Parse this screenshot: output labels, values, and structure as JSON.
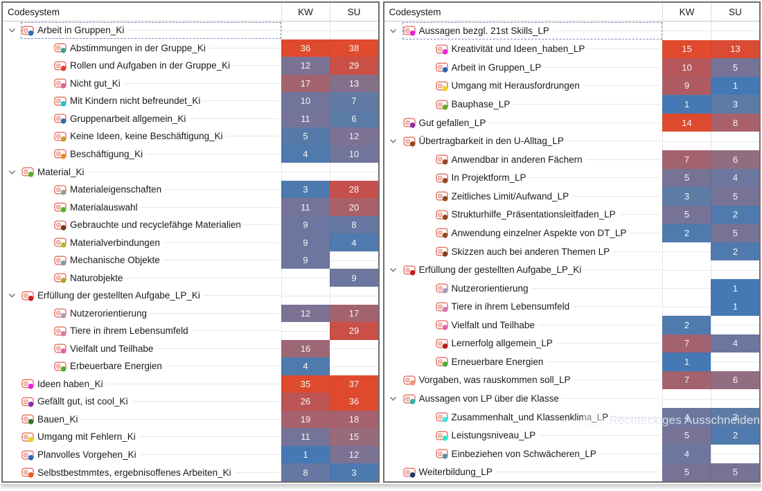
{
  "colors": {
    "tag_outline": "#e5796a",
    "leader_line": "#e6e6ea",
    "selection_dash": "#7089b4",
    "chevron": "#757575",
    "heat_stops": [
      [
        0.0,
        "#4579b3"
      ],
      [
        0.08,
        "#4f7aad"
      ],
      [
        0.15,
        "#5d7ba4"
      ],
      [
        0.22,
        "#6d769e"
      ],
      [
        0.29,
        "#787396"
      ],
      [
        0.36,
        "#936d81"
      ],
      [
        0.43,
        "#a2636f"
      ],
      [
        0.5,
        "#a8616b"
      ],
      [
        0.6,
        "#b15a5f"
      ],
      [
        0.7,
        "#bf5252"
      ],
      [
        0.8,
        "#d24c3c"
      ],
      [
        0.88,
        "#dd4a2f"
      ],
      [
        1.0,
        "#e04a2d"
      ]
    ]
  },
  "watermark": {
    "text": "Rechteckiges Ausschneiden"
  },
  "panels": [
    {
      "header": {
        "name": "Codesystem",
        "col1": "KW",
        "col2": "SU"
      },
      "max": 38,
      "rows": [
        {
          "label": "Arbeit in Gruppen_Ki",
          "level": 0,
          "parent": true,
          "selected": true,
          "dot": "#3468b8",
          "kw": null,
          "su": null
        },
        {
          "label": "Abstimmungen in der Gruppe_Ki",
          "level": 1,
          "dot": "#3fa389",
          "kw": 36,
          "su": 38
        },
        {
          "label": "Rollen und Aufgaben in der Gruppe_Ki",
          "level": 1,
          "dot": "#e23b28",
          "kw": 12,
          "su": 29
        },
        {
          "label": "Nicht gut_Ki",
          "level": 1,
          "dot": "#d1679e",
          "kw": 17,
          "su": 13
        },
        {
          "label": "Mit Kindern nicht befreundet_Ki",
          "level": 1,
          "dot": "#17c3da",
          "kw": 10,
          "su": 7
        },
        {
          "label": "Gruppenarbeit allgemein_Ki",
          "level": 1,
          "dot": "#2f6ab8",
          "kw": 11,
          "su": 6
        },
        {
          "label": "Keine Ideen, keine Beschäftigung_Ki",
          "level": 1,
          "dot": "#d29a36",
          "kw": 5,
          "su": 12
        },
        {
          "label": "Beschäftigung_Ki",
          "level": 1,
          "dot": "#f08a1d",
          "kw": 4,
          "su": 10
        },
        {
          "label": "Material_Ki",
          "level": 0,
          "parent": true,
          "dot": "#57aa2e",
          "kw": null,
          "su": null
        },
        {
          "label": "Materialeigenschaften",
          "level": 1,
          "dot": "#8da492",
          "kw": 3,
          "su": 28
        },
        {
          "label": "Materialauswahl",
          "level": 1,
          "dot": "#4fb81e",
          "kw": 11,
          "su": 20
        },
        {
          "label": "Gebrauchte und recyclefähge Materialien",
          "level": 1,
          "dot": "#77361b",
          "kw": 9,
          "su": 8
        },
        {
          "label": "Materialverbindungen",
          "level": 1,
          "dot": "#b3bb2e",
          "kw": 9,
          "su": 4
        },
        {
          "label": "Mechanische Objekte",
          "level": 1,
          "dot": "#7e9dac",
          "kw": 9,
          "su": null
        },
        {
          "label": "Naturobjekte",
          "level": 1,
          "dot": "#b3a226",
          "kw": null,
          "su": 9
        },
        {
          "label": "Erfüllung der gestellten Aufgabe_LP_Ki",
          "level": 0,
          "parent": true,
          "dot": "#d41f1f",
          "kw": null,
          "su": null
        },
        {
          "label": "Nutzerorientierung",
          "level": 1,
          "dot": "#a99cc0",
          "kw": 12,
          "su": 17
        },
        {
          "label": "Tiere in ihrem Lebensumfeld",
          "level": 1,
          "dot": "#d877ae",
          "kw": null,
          "su": 29
        },
        {
          "label": "Vielfalt und Teilhabe",
          "level": 1,
          "dot": "#e45fa9",
          "kw": 16,
          "su": null
        },
        {
          "label": "Erbeuerbare Energien",
          "level": 1,
          "dot": "#4caf2e",
          "kw": 4,
          "su": null
        },
        {
          "label": "Ideen haben_Ki",
          "level": 0,
          "dot": "#ef1fd9",
          "kw": 35,
          "su": 37
        },
        {
          "label": "Gefällt gut, ist cool_Ki",
          "level": 0,
          "dot": "#8f2bad",
          "kw": 26,
          "su": 36
        },
        {
          "label": "Bauen_Ki",
          "level": 0,
          "dot": "#2c7a1a",
          "kw": 19,
          "su": 18
        },
        {
          "label": "Umgang mit Fehlern_Ki",
          "level": 0,
          "dot": "#ecd21f",
          "kw": 11,
          "su": 15
        },
        {
          "label": "Planvolles Vorgehen_Ki",
          "level": 0,
          "dot": "#2a69b3",
          "kw": 1,
          "su": 12
        },
        {
          "label": "Selbstbestmmtes, ergebnisoffenes Arbeiten_Ki",
          "level": 0,
          "dot": "#f2591c",
          "kw": 8,
          "su": 3
        }
      ]
    },
    {
      "header": {
        "name": "Codesystem",
        "col1": "KW",
        "col2": "SU"
      },
      "max": 15,
      "rows": [
        {
          "label": "Aussagen bezgl. 21st Skills_LP",
          "level": 0,
          "parent": true,
          "selected": true,
          "dot": "#ef1fd9",
          "kw": null,
          "su": null
        },
        {
          "label": "Kreativität und Ideen_haben_LP",
          "level": 1,
          "dot": "#ef1fd9",
          "kw": 15,
          "su": 13
        },
        {
          "label": "Arbeit in Gruppen_LP",
          "level": 1,
          "dot": "#2a69b3",
          "kw": 10,
          "su": 5
        },
        {
          "label": "Umgang mit Herausfordrungen",
          "level": 1,
          "dot": "#ecd21f",
          "kw": 9,
          "su": 1
        },
        {
          "label": "Bauphase_LP",
          "level": 1,
          "dot": "#67a82a",
          "kw": 1,
          "su": 3
        },
        {
          "label": "Gut gefallen_LP",
          "level": 0,
          "dot": "#8f2bad",
          "kw": 14,
          "su": 8
        },
        {
          "label": "Übertragbarkeit in den U-Alltag_LP",
          "level": 0,
          "parent": true,
          "dot": "#92471f",
          "kw": null,
          "su": null
        },
        {
          "label": "Anwendbar in anderen Fächern",
          "level": 1,
          "dot": "#92471f",
          "kw": 7,
          "su": 6
        },
        {
          "label": "In Projektform_LP",
          "level": 1,
          "dot": "#92471f",
          "kw": 5,
          "su": 4
        },
        {
          "label": "Zeitliches Limit/Aufwand_LP",
          "level": 1,
          "dot": "#92471f",
          "kw": 3,
          "su": 5
        },
        {
          "label": "Strukturhilfe_Präsentationsleitfaden_LP",
          "level": 1,
          "dot": "#92471f",
          "kw": 5,
          "su": 2
        },
        {
          "label": "Anwendung einzelner Aspekte von DT_LP",
          "level": 1,
          "dot": "#92471f",
          "kw": 2,
          "su": 5
        },
        {
          "label": "Skizzen auch bei anderen Themen LP",
          "level": 1,
          "dot": "#83401d",
          "kw": null,
          "su": 2
        },
        {
          "label": "Erfüllung der gestellten Aufgabe_LP_Ki",
          "level": 0,
          "parent": true,
          "dot": "#c21d1d",
          "kw": null,
          "su": null
        },
        {
          "label": "Nutzerorientierung",
          "level": 1,
          "dot": "#a99cc0",
          "kw": null,
          "su": 1
        },
        {
          "label": "Tiere in ihrem Lebensumfeld",
          "level": 1,
          "dot": "#d877ae",
          "kw": null,
          "su": 1
        },
        {
          "label": "Vielfalt und Teilhabe",
          "level": 1,
          "dot": "#e466ae",
          "kw": 2,
          "su": null
        },
        {
          "label": "Lernerfolg allgemein_LP",
          "level": 1,
          "dot": "#bc1a1a",
          "kw": 7,
          "su": 4
        },
        {
          "label": "Erneuerbare Energien",
          "level": 1,
          "dot": "#4caf2e",
          "kw": 1,
          "su": null
        },
        {
          "label": "Vorgaben, was rauskommen soll_LP",
          "level": 0,
          "dot": "#f2917f",
          "kw": 7,
          "su": 6
        },
        {
          "label": "Aussagen von LP über die Klasse",
          "level": 0,
          "parent": true,
          "dot": "#2fb1ad",
          "kw": null,
          "su": null
        },
        {
          "label": "Zusammenhalt_und Klassenklima_LP",
          "level": 1,
          "dot": "#3fe8e2",
          "kw": 4,
          "su": 3
        },
        {
          "label": "Leistungsniveau_LP",
          "level": 1,
          "dot": "#2de9c2",
          "kw": 5,
          "su": 2
        },
        {
          "label": "Einbeziehen von Schwächeren_LP",
          "level": 1,
          "dot": "#5a93a0",
          "kw": 4,
          "su": null
        },
        {
          "label": "Weiterbildung_LP",
          "level": 0,
          "dot": "#1c3a6b",
          "kw": 5,
          "su": 5
        }
      ]
    }
  ]
}
